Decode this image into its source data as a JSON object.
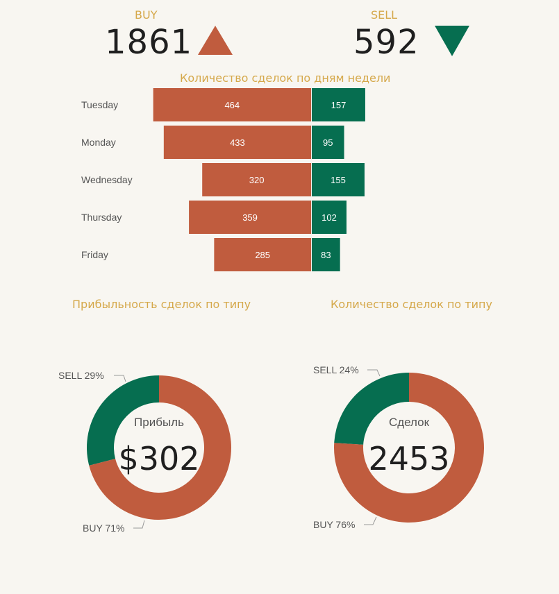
{
  "kpis": {
    "buy": {
      "label": "BUY",
      "value": "1861"
    },
    "sell": {
      "label": "SELL",
      "value": "592"
    }
  },
  "colors": {
    "buy": "#c05c3e",
    "sell": "#066e50",
    "accent": "#d5a84a",
    "background": "#f8f6f1"
  },
  "icons": {
    "buy_trend": "triangle-up-icon",
    "sell_trend": "triangle-down-icon"
  },
  "chart_data": [
    {
      "type": "bar",
      "title": "Количество сделок по дням недели",
      "orientation": "horizontal-diverging",
      "categories": [
        "Tuesday",
        "Monday",
        "Wednesday",
        "Thursday",
        "Friday"
      ],
      "series": [
        {
          "name": "BUY",
          "values": [
            464,
            433,
            320,
            359,
            285
          ]
        },
        {
          "name": "SELL",
          "values": [
            157,
            95,
            155,
            102,
            83
          ]
        }
      ]
    },
    {
      "type": "pie",
      "title": "Прибыльность сделок по типу",
      "center_label": "Прибыль",
      "center_value": "$302",
      "slices": [
        {
          "label": "SELL 29%",
          "value": 29
        },
        {
          "label": "BUY 71%",
          "value": 71
        }
      ]
    },
    {
      "type": "pie",
      "title": "Количество сделок по типу",
      "center_label": "Сделок",
      "center_value": "2453",
      "slices": [
        {
          "label": "SELL 24%",
          "value": 24
        },
        {
          "label": "BUY 76%",
          "value": 76
        }
      ]
    }
  ]
}
